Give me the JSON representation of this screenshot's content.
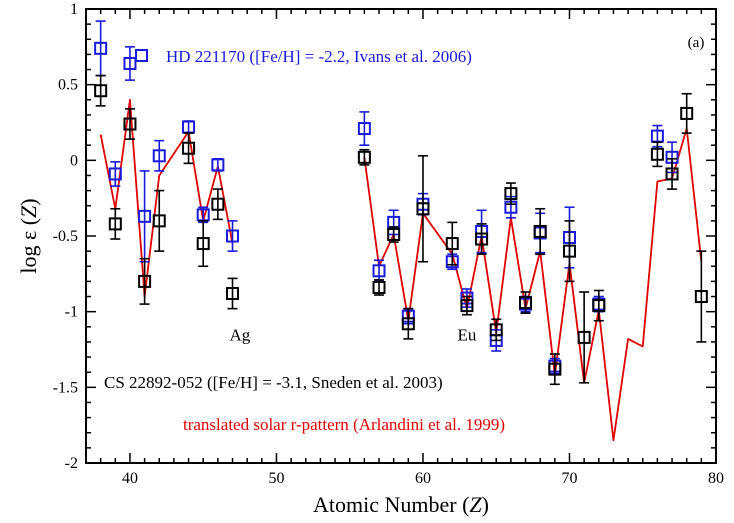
{
  "chart_data": {
    "type": "scatter",
    "panel_label": "(a)",
    "xlabel": "Atomic Number",
    "xlabel_symbol": "Z",
    "ylabel": "log ε",
    "ylabel_symbol": "Z",
    "xlim": [
      37,
      80
    ],
    "ylim": [
      -2,
      1
    ],
    "x_ticks": [
      40,
      50,
      60,
      70,
      80
    ],
    "y_ticks": [
      -2,
      -1.5,
      -1,
      -0.5,
      0,
      0.5,
      1
    ],
    "grid": false,
    "annotations": [
      {
        "text": "Ag",
        "x": 47.5,
        "y": -1.15
      },
      {
        "text": "Eu",
        "x": 63.0,
        "y": -1.15
      }
    ],
    "series": [
      {
        "name": "HD 221170 ([Fe/H] = -2.2, Ivans et al. 2006)",
        "kind": "markers",
        "color": "#1a1adb",
        "legend_marker": true,
        "points": [
          {
            "x": 38,
            "y": 0.74,
            "err": 0.18
          },
          {
            "x": 39,
            "y": -0.09,
            "err": 0.08
          },
          {
            "x": 40,
            "y": 0.64,
            "err": 0.11
          },
          {
            "x": 41,
            "y": -0.37,
            "err": 0.3
          },
          {
            "x": 42,
            "y": 0.03,
            "err": 0.1
          },
          {
            "x": 44,
            "y": 0.22,
            "err": 0.04
          },
          {
            "x": 45,
            "y": -0.36,
            "err": 0.05
          },
          {
            "x": 46,
            "y": -0.03,
            "err": 0.04
          },
          {
            "x": 47,
            "y": -0.5,
            "err": 0.1
          },
          {
            "x": 56,
            "y": 0.21,
            "err": 0.11
          },
          {
            "x": 57,
            "y": -0.73,
            "err": 0.07
          },
          {
            "x": 58,
            "y": -0.41,
            "err": 0.08
          },
          {
            "x": 59,
            "y": -1.03,
            "err": 0.05
          },
          {
            "x": 60,
            "y": -0.29,
            "err": 0.07
          },
          {
            "x": 62,
            "y": -0.67,
            "err": 0.05
          },
          {
            "x": 63,
            "y": -0.91,
            "err": 0.06
          },
          {
            "x": 64,
            "y": -0.47,
            "err": 0.14
          },
          {
            "x": 65,
            "y": -1.19,
            "err": 0.07
          },
          {
            "x": 66,
            "y": -0.31,
            "err": 0.07
          },
          {
            "x": 67,
            "y": -0.95,
            "err": 0.05
          },
          {
            "x": 68,
            "y": -0.48,
            "err": 0.13
          },
          {
            "x": 69,
            "y": -1.36,
            "err": 0.05
          },
          {
            "x": 70,
            "y": -0.51,
            "err": 0.2
          },
          {
            "x": 72,
            "y": -0.95,
            "err": 0.05
          },
          {
            "x": 76,
            "y": 0.16,
            "err": 0.07
          },
          {
            "x": 77,
            "y": 0.02,
            "err": 0.1
          }
        ]
      },
      {
        "name": "CS 22892-052 ([Fe/H] = -3.1, Sneden et al. 2003)",
        "kind": "markers",
        "color": "#000000",
        "legend_marker": false,
        "points": [
          {
            "x": 38,
            "y": 0.46,
            "err": 0.1
          },
          {
            "x": 39,
            "y": -0.42,
            "err": 0.1
          },
          {
            "x": 40,
            "y": 0.24,
            "err": 0.1
          },
          {
            "x": 41,
            "y": -0.8,
            "err": 0.15
          },
          {
            "x": 42,
            "y": -0.4,
            "err": 0.2
          },
          {
            "x": 44,
            "y": 0.08,
            "err": 0.1
          },
          {
            "x": 45,
            "y": -0.55,
            "err": 0.15
          },
          {
            "x": 46,
            "y": -0.29,
            "err": 0.1
          },
          {
            "x": 47,
            "y": -0.88,
            "err": 0.1
          },
          {
            "x": 56,
            "y": 0.02,
            "err": 0.05
          },
          {
            "x": 57,
            "y": -0.84,
            "err": 0.05
          },
          {
            "x": 58,
            "y": -0.49,
            "err": 0.05
          },
          {
            "x": 59,
            "y": -1.08,
            "err": 0.1
          },
          {
            "x": 60,
            "y": -0.32,
            "err": 0.35
          },
          {
            "x": 62,
            "y": -0.55,
            "err": 0.14
          },
          {
            "x": 63,
            "y": -0.96,
            "err": 0.06
          },
          {
            "x": 64,
            "y": -0.52,
            "err": 0.1
          },
          {
            "x": 65,
            "y": -1.12,
            "err": 0.07
          },
          {
            "x": 66,
            "y": -0.22,
            "err": 0.07
          },
          {
            "x": 67,
            "y": -0.94,
            "err": 0.07
          },
          {
            "x": 68,
            "y": -0.47,
            "err": 0.15
          },
          {
            "x": 69,
            "y": -1.38,
            "err": 0.1
          },
          {
            "x": 70,
            "y": -0.6,
            "err": 0.2
          },
          {
            "x": 71,
            "y": -1.17,
            "err": 0.3
          },
          {
            "x": 72,
            "y": -0.96,
            "err": 0.1
          },
          {
            "x": 76,
            "y": 0.04,
            "err": 0.08
          },
          {
            "x": 77,
            "y": -0.09,
            "err": 0.1
          },
          {
            "x": 78,
            "y": 0.31,
            "err": 0.13
          },
          {
            "x": 79,
            "y": -0.9,
            "err": 0.3
          }
        ]
      },
      {
        "name": "translated solar r-pattern (Arlandini et al. 1999)",
        "kind": "line",
        "color": "#e00000",
        "legend_marker": false,
        "segments": [
          [
            {
              "x": 38,
              "y": 0.17
            },
            {
              "x": 39,
              "y": -0.32
            },
            {
              "x": 40,
              "y": 0.4
            },
            {
              "x": 41,
              "y": -0.9
            },
            {
              "x": 42,
              "y": -0.1
            },
            {
              "x": 44,
              "y": 0.19
            },
            {
              "x": 45,
              "y": -0.4
            },
            {
              "x": 46,
              "y": -0.04
            },
            {
              "x": 47,
              "y": -0.55
            }
          ],
          [
            {
              "x": 56,
              "y": 0.02
            },
            {
              "x": 57,
              "y": -0.7
            },
            {
              "x": 58,
              "y": -0.49
            },
            {
              "x": 59,
              "y": -1.06
            },
            {
              "x": 60,
              "y": -0.35
            },
            {
              "x": 62,
              "y": -0.62
            },
            {
              "x": 63,
              "y": -0.98
            },
            {
              "x": 64,
              "y": -0.5
            },
            {
              "x": 65,
              "y": -1.14
            },
            {
              "x": 66,
              "y": -0.38
            },
            {
              "x": 67,
              "y": -0.98
            },
            {
              "x": 68,
              "y": -0.6
            },
            {
              "x": 69,
              "y": -1.42
            },
            {
              "x": 70,
              "y": -0.68
            },
            {
              "x": 71,
              "y": -1.47
            },
            {
              "x": 72,
              "y": -0.99
            },
            {
              "x": 73,
              "y": -1.85
            },
            {
              "x": 74,
              "y": -1.18
            },
            {
              "x": 75,
              "y": -1.23
            },
            {
              "x": 76,
              "y": -0.14
            },
            {
              "x": 77,
              "y": -0.12
            },
            {
              "x": 78,
              "y": 0.21
            },
            {
              "x": 79,
              "y": -0.67
            }
          ]
        ]
      }
    ]
  }
}
